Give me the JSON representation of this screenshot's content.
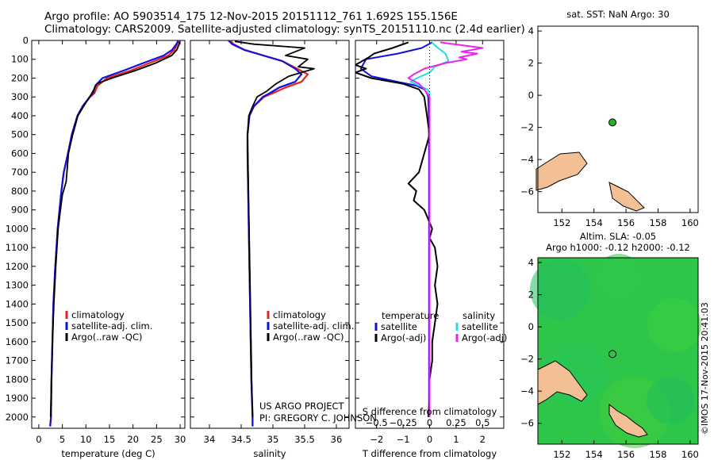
{
  "header": {
    "line1": "Argo profile: AO 5903514_175 12-Nov-2015 20151112_761 1.692S 155.156E",
    "line2": "Climatology: CARS2009. Satellite-adjusted climatology: synTS_20151110.nc (2.4d earlier)"
  },
  "credit": "©IMOS 17-Nov-2015 20:41:03",
  "project": {
    "line1": "US ARGO PROJECT",
    "line2": "PI: GREGORY C. JOHNSON"
  },
  "colors": {
    "climatology": "#e32222",
    "satellite": "#1010d8",
    "argo": "#000000",
    "sat_salinity": "#22dde8",
    "argo_salinity": "#ee22ee",
    "land": "#f3c096",
    "marker": "#22b322"
  },
  "legend_ts": [
    "climatology",
    "satellite-adj. clim.",
    "Argo(..raw -QC)"
  ],
  "legend_diff": {
    "temp_title": "temperature",
    "sal_title": "salinity",
    "temp_items": [
      "satellite",
      "Argo(-adj)"
    ],
    "sal_items": [
      "satellite",
      "Argo(-adj)"
    ]
  },
  "map_sst": {
    "title": "sat. SST: NaN Argo: 30"
  },
  "map_sla": {
    "title1": "Altim. SLA: -0.05",
    "title2": "Argo h1000: -0.12 h2000: -0.12"
  },
  "chart_data": [
    {
      "type": "line",
      "xlabel": "temperature (deg C)",
      "ylabel": "",
      "xlim": [
        -1.5,
        31
      ],
      "ylim": [
        2060,
        0
      ],
      "y_inverted": true,
      "xticks": [
        0,
        5,
        10,
        15,
        20,
        25,
        30
      ],
      "yticks": [
        0,
        100,
        200,
        300,
        400,
        500,
        600,
        700,
        800,
        900,
        1000,
        1100,
        1200,
        1300,
        1400,
        1500,
        1600,
        1700,
        1800,
        1900,
        2000
      ],
      "series": [
        {
          "name": "climatology",
          "x": [
            29.6,
            29.4,
            28.8,
            27.5,
            23.5,
            19.5,
            14.5,
            12.5,
            11.8,
            10.9,
            9.3,
            8.2,
            7.0,
            6.2,
            5.3,
            4.8,
            4.4,
            4.0,
            3.5,
            3.1,
            2.9,
            2.7,
            2.6,
            2.4
          ],
          "y": [
            0,
            20,
            50,
            80,
            120,
            160,
            200,
            240,
            280,
            300,
            350,
            400,
            500,
            600,
            700,
            800,
            900,
            1000,
            1200,
            1400,
            1600,
            1800,
            2000,
            2050
          ]
        },
        {
          "name": "satellite-adj. clim.",
          "x": [
            29.6,
            29.2,
            28.3,
            26.5,
            22.2,
            18.0,
            13.5,
            12.0,
            11.5,
            10.8,
            9.3,
            8.2,
            7.0,
            6.2,
            5.3,
            4.8,
            4.4,
            4.0,
            3.5,
            3.1,
            2.9,
            2.7,
            2.6,
            2.4
          ],
          "y": [
            0,
            20,
            50,
            80,
            120,
            160,
            200,
            240,
            280,
            300,
            350,
            400,
            500,
            600,
            700,
            800,
            900,
            1000,
            1200,
            1400,
            1600,
            1800,
            2000,
            2050
          ]
        },
        {
          "name": "Argo(..raw -QC)",
          "x": [
            29.9,
            29.8,
            29.3,
            28.2,
            24.8,
            20.5,
            15.5,
            12.3,
            11.5,
            10.8,
            9.5,
            8.3,
            7.2,
            6.3,
            5.8,
            5.0,
            4.6,
            4.1,
            3.6,
            3.2,
            2.9,
            2.7,
            2.5
          ],
          "y": [
            5,
            20,
            50,
            80,
            120,
            160,
            200,
            230,
            270,
            300,
            350,
            400,
            500,
            600,
            750,
            820,
            900,
            1000,
            1200,
            1400,
            1600,
            1800,
            2000
          ]
        }
      ]
    },
    {
      "type": "line",
      "xlabel": "salinity",
      "ylabel": "",
      "xlim": [
        33.7,
        36.2
      ],
      "ylim": [
        2060,
        0
      ],
      "y_inverted": true,
      "xticks": [
        34,
        34.5,
        35,
        35.5,
        36
      ],
      "series": [
        {
          "name": "climatology",
          "x": [
            34.33,
            34.38,
            34.55,
            34.85,
            35.15,
            35.38,
            35.55,
            35.45,
            35.2,
            35.0,
            34.86,
            34.7,
            34.63,
            34.6,
            34.6,
            34.61,
            34.62,
            34.63,
            34.64,
            34.65,
            34.66,
            34.67,
            34.68,
            34.68
          ],
          "y": [
            0,
            20,
            50,
            80,
            110,
            150,
            180,
            220,
            250,
            280,
            300,
            350,
            400,
            500,
            600,
            800,
            1000,
            1200,
            1400,
            1600,
            1800,
            1900,
            2000,
            2050
          ]
        },
        {
          "name": "satellite-adj. clim.",
          "x": [
            34.3,
            34.36,
            34.55,
            34.85,
            35.15,
            35.35,
            35.45,
            35.35,
            35.1,
            34.95,
            34.84,
            34.7,
            34.63,
            34.6,
            34.6,
            34.61,
            34.62,
            34.63,
            34.64,
            34.65,
            34.66,
            34.67,
            34.68,
            34.68
          ],
          "y": [
            0,
            20,
            50,
            80,
            110,
            150,
            180,
            220,
            250,
            280,
            300,
            350,
            400,
            500,
            600,
            800,
            1000,
            1200,
            1400,
            1600,
            1800,
            1900,
            2000,
            2050
          ]
        },
        {
          "name": "Argo(..raw -QC)",
          "x": [
            34.4,
            34.7,
            35.5,
            35.2,
            35.55,
            35.4,
            35.65,
            35.25,
            35.05,
            34.9,
            34.75,
            34.68,
            34.62,
            34.6,
            34.61,
            34.62,
            34.63,
            34.64,
            34.65,
            34.66,
            34.67,
            34.68
          ],
          "y": [
            5,
            20,
            40,
            80,
            100,
            140,
            150,
            190,
            230,
            270,
            300,
            350,
            400,
            500,
            700,
            900,
            1100,
            1300,
            1500,
            1700,
            1900,
            2000
          ]
        }
      ]
    },
    {
      "type": "line",
      "xlabel": "T difference from climatology",
      "x2label": "S difference from climatology",
      "xlim": [
        -2.8,
        2.8
      ],
      "x2lim": [
        -0.7,
        0.7
      ],
      "ylim": [
        2060,
        0
      ],
      "y_inverted": true,
      "xticks": [
        -2,
        -1,
        0,
        1,
        2
      ],
      "x2ticks": [
        -0.5,
        -0.25,
        0,
        0.25,
        0.5
      ],
      "series": [
        {
          "name": "temperature satellite",
          "axis": "T",
          "x": [
            0.1,
            -0.3,
            -1.2,
            -2.4,
            -2.6,
            -2.2,
            -1.2,
            -0.5,
            -0.2,
            -0.1,
            -0.05,
            -0.04,
            -0.03,
            -0.02,
            -0.02,
            -0.02,
            -0.02,
            -0.02,
            -0.02,
            -0.02,
            -0.02
          ],
          "y": [
            10,
            40,
            70,
            100,
            150,
            190,
            220,
            240,
            260,
            280,
            300,
            350,
            450,
            600,
            800,
            1000,
            1200,
            1400,
            1600,
            1800,
            2000
          ]
        },
        {
          "name": "temperature Argo(-adj)",
          "axis": "T",
          "x": [
            -0.8,
            -1.4,
            -2.1,
            -2.3,
            -2.8,
            -2.4,
            -2.8,
            -2.2,
            -1.0,
            -0.4,
            -0.2,
            -0.1,
            0.0,
            -0.2,
            -0.4,
            -0.8,
            -0.5,
            -0.6,
            -0.2,
            0.1,
            0.0,
            0.2,
            0.3,
            0.2,
            0.3,
            0.2,
            0.1,
            0.1,
            0.0,
            0.0,
            -0.05
          ],
          "y": [
            10,
            40,
            70,
            90,
            130,
            150,
            170,
            200,
            230,
            260,
            300,
            400,
            500,
            600,
            700,
            760,
            800,
            850,
            900,
            1000,
            1050,
            1100,
            1200,
            1300,
            1400,
            1500,
            1600,
            1700,
            1800,
            1900,
            2000
          ]
        },
        {
          "name": "salinity satellite",
          "axis": "S",
          "x": [
            0.02,
            0.08,
            0.15,
            0.18,
            0.05,
            0.0,
            -0.12,
            -0.18,
            -0.1,
            -0.02,
            0.0,
            0.0,
            0.0,
            0.0,
            0.0,
            0.0,
            0.0,
            0.0,
            0.0
          ],
          "y": [
            10,
            40,
            70,
            110,
            140,
            170,
            200,
            220,
            240,
            260,
            280,
            300,
            400,
            600,
            800,
            1000,
            1400,
            1800,
            2000
          ]
        },
        {
          "name": "salinity Argo(-adj)",
          "axis": "S",
          "x": [
            0.1,
            0.5,
            0.3,
            0.45,
            0.28,
            0.35,
            0.15,
            -0.05,
            -0.15,
            -0.2,
            -0.1,
            -0.05,
            0.0,
            0.0,
            0.0,
            0.0
          ],
          "y": [
            10,
            40,
            60,
            70,
            90,
            100,
            120,
            150,
            180,
            200,
            230,
            260,
            300,
            600,
            1000,
            2000
          ]
        },
        {
          "name": "zero line",
          "axis": "T",
          "x": [
            0,
            0
          ],
          "y": [
            0,
            300
          ]
        }
      ]
    },
    {
      "type": "scatter",
      "title": "sat. SST: NaN Argo: 30",
      "xlim": [
        150.5,
        160.5
      ],
      "ylim": [
        -7.3,
        4.3
      ],
      "xticks": [
        152,
        154,
        156,
        158,
        160
      ],
      "yticks": [
        -6,
        -4,
        -2,
        0,
        2,
        4
      ],
      "points": [
        {
          "name": "Argo float",
          "x": 155.156,
          "y": -1.692
        }
      ]
    },
    {
      "type": "heatmap",
      "title": "Altim. SLA: -0.05",
      "subtitle": "Argo h1000: -0.12 h2000: -0.12",
      "xlim": [
        150.5,
        160.5
      ],
      "ylim": [
        -7.3,
        4.3
      ],
      "xticks": [
        152,
        154,
        156,
        158,
        160
      ],
      "yticks": [
        -6,
        -4,
        -2,
        0,
        2,
        4
      ],
      "points": [
        {
          "name": "Argo float",
          "x": 155.156,
          "y": -1.692
        }
      ]
    }
  ]
}
